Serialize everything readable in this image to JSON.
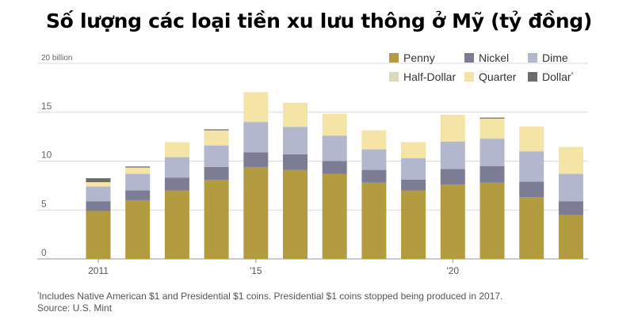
{
  "title": "Số lượng các loại tiền xu lưu thông ở Mỹ (tỷ đồng)",
  "footnote_marker": "¹",
  "footnote": "Includes Native American $1 and Presidential $1 coins. Presidential $1 coins stopped being produced in 2017.",
  "source": "Source: U.S. Mint",
  "chart_data": {
    "type": "bar",
    "stacked": true,
    "categories": [
      "2011",
      "2012",
      "2013",
      "2014",
      "2015",
      "2016",
      "2017",
      "2018",
      "2019",
      "2020",
      "2021",
      "2022",
      "2023"
    ],
    "x_tick_labels": {
      "2011": "2011",
      "2015": "'15",
      "2020": "'20"
    },
    "ylim": [
      0,
      20
    ],
    "y_ticks": [
      0,
      5,
      10,
      15,
      20
    ],
    "y_tick_labels": [
      "0",
      "5",
      "10",
      "15",
      "20 billion"
    ],
    "gridlines": true,
    "legend_position": "top-right",
    "series": [
      {
        "name": "Penny",
        "color": "#b39b3f",
        "values": [
          4.9,
          6.0,
          7.0,
          8.1,
          9.4,
          9.1,
          8.7,
          7.8,
          7.0,
          7.6,
          7.8,
          6.3,
          4.5
        ]
      },
      {
        "name": "Nickel",
        "color": "#7c7c94",
        "values": [
          1.0,
          1.0,
          1.3,
          1.3,
          1.5,
          1.6,
          1.3,
          1.3,
          1.1,
          1.6,
          1.7,
          1.6,
          1.4
        ]
      },
      {
        "name": "Dime",
        "color": "#b3b7cd",
        "values": [
          1.5,
          1.7,
          2.1,
          2.2,
          3.1,
          2.8,
          2.6,
          2.1,
          2.2,
          2.8,
          2.8,
          3.1,
          2.8
        ]
      },
      {
        "name": "Half-Dollar",
        "color": "#ddd9bb",
        "values": [
          0.05,
          0.05,
          0.05,
          0.05,
          0.05,
          0.05,
          0.05,
          0.05,
          0.05,
          0.05,
          0.05,
          0.05,
          0.05
        ]
      },
      {
        "name": "Quarter",
        "color": "#f4e4a6",
        "values": [
          0.4,
          0.6,
          1.5,
          1.5,
          3.0,
          2.4,
          2.2,
          1.9,
          1.6,
          2.7,
          2.0,
          2.5,
          2.7
        ]
      },
      {
        "name": "Dollar",
        "legend_marker": "¹",
        "color": "#6b6b6b",
        "values": [
          0.4,
          0.1,
          0.0,
          0.1,
          0.0,
          0.0,
          0.0,
          0.0,
          0.0,
          0.0,
          0.1,
          0.0,
          0.0
        ]
      }
    ]
  }
}
